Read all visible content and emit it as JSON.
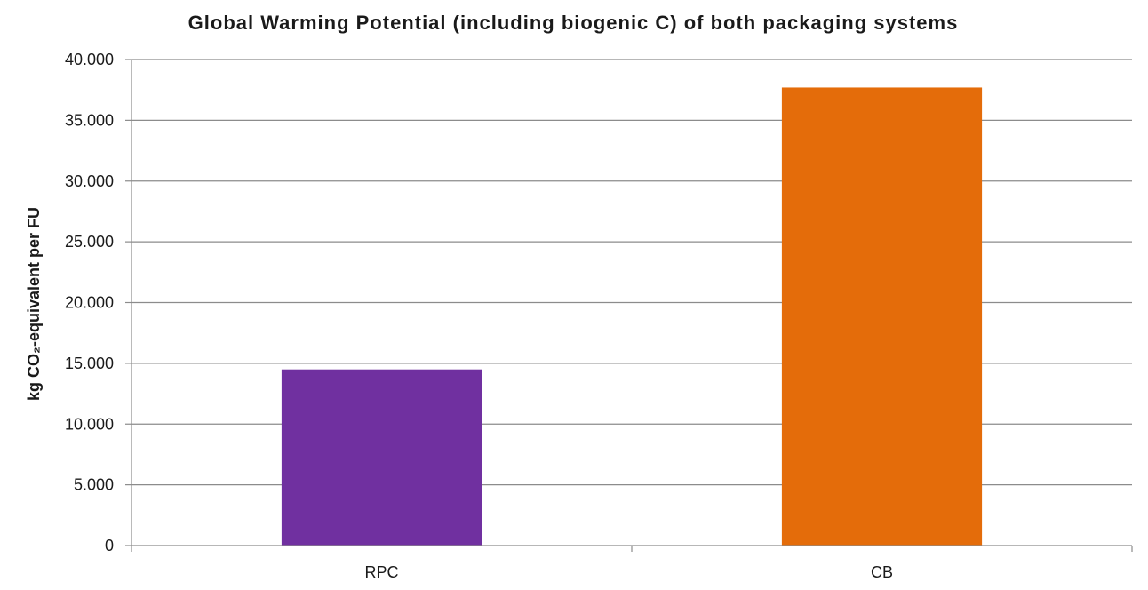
{
  "chart_data": {
    "type": "bar",
    "title": "Global Warming Potential (including biogenic C) of both packaging systems",
    "ylabel": "kg CO₂-equivalent per FU",
    "xlabel": "",
    "categories": [
      "RPC",
      "CB"
    ],
    "values": [
      14.5,
      37.7
    ],
    "colors": [
      "#7030A0",
      "#E46C0A"
    ],
    "ylim": [
      0,
      40
    ],
    "yticks": [
      0,
      5,
      10,
      15,
      20,
      25,
      30,
      35,
      40
    ],
    "ytick_labels": [
      "0",
      "5.000",
      "10.000",
      "15.000",
      "20.000",
      "25.000",
      "30.000",
      "35.000",
      "40.000"
    ],
    "grid": true,
    "legend": "none"
  }
}
